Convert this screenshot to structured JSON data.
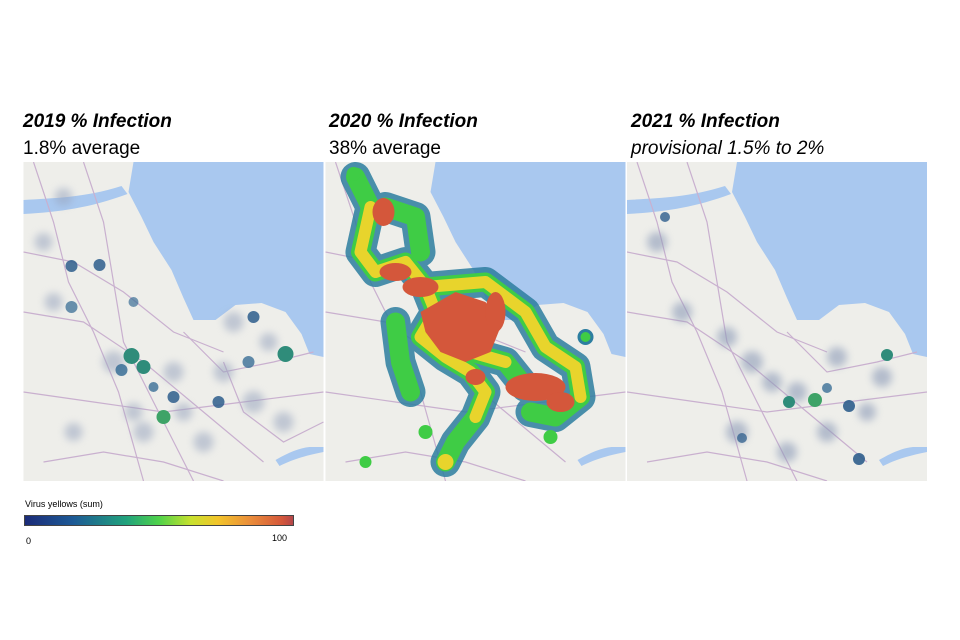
{
  "panels": [
    {
      "title": "2019 % Infection",
      "subtitle": "1.8% average"
    },
    {
      "title": "2020 % Infection",
      "subtitle": "38% average"
    },
    {
      "title": "2021 % Infection",
      "subtitle": "provisional 1.5% to 2%"
    }
  ],
  "legend": {
    "title": "Virus yellows (sum)",
    "min_label": "0",
    "max_label": "100",
    "colors": [
      "#1b2b78",
      "#21a37c",
      "#4fd24a",
      "#f2c42a",
      "#d4573b"
    ]
  },
  "map_colors": {
    "land": "#eeeeea",
    "sea": "#a9c8ef",
    "roads": "#c9b0cf"
  }
}
